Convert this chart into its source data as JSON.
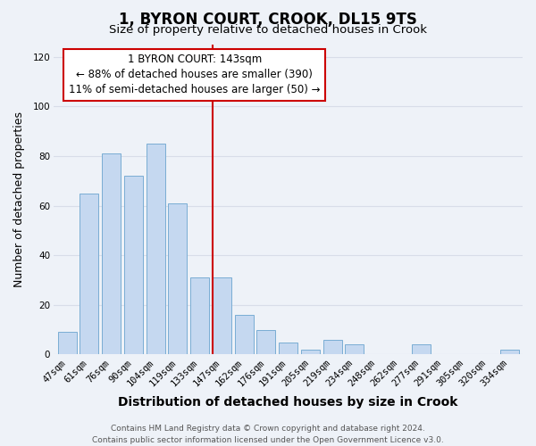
{
  "title": "1, BYRON COURT, CROOK, DL15 9TS",
  "subtitle": "Size of property relative to detached houses in Crook",
  "xlabel": "Distribution of detached houses by size in Crook",
  "ylabel": "Number of detached properties",
  "bar_labels": [
    "47sqm",
    "61sqm",
    "76sqm",
    "90sqm",
    "104sqm",
    "119sqm",
    "133sqm",
    "147sqm",
    "162sqm",
    "176sqm",
    "191sqm",
    "205sqm",
    "219sqm",
    "234sqm",
    "248sqm",
    "262sqm",
    "277sqm",
    "291sqm",
    "305sqm",
    "320sqm",
    "334sqm"
  ],
  "bar_values": [
    9,
    65,
    81,
    72,
    85,
    61,
    31,
    31,
    16,
    10,
    5,
    2,
    6,
    4,
    0,
    0,
    4,
    0,
    0,
    0,
    2
  ],
  "bar_color": "#c5d8f0",
  "bar_edge_color": "#7aadd4",
  "highlight_color": "#cc0000",
  "ylim": [
    0,
    125
  ],
  "yticks": [
    0,
    20,
    40,
    60,
    80,
    100,
    120
  ],
  "annotation_title": "1 BYRON COURT: 143sqm",
  "annotation_line1": "← 88% of detached houses are smaller (390)",
  "annotation_line2": "11% of semi-detached houses are larger (50) →",
  "annotation_box_color": "#ffffff",
  "annotation_box_edge": "#cc0000",
  "footer1": "Contains HM Land Registry data © Crown copyright and database right 2024.",
  "footer2": "Contains public sector information licensed under the Open Government Licence v3.0.",
  "background_color": "#eef2f8",
  "grid_color": "#d8dde8",
  "title_fontsize": 12,
  "subtitle_fontsize": 9.5,
  "xlabel_fontsize": 10,
  "ylabel_fontsize": 9,
  "tick_fontsize": 7.5,
  "annotation_fontsize": 8.5,
  "footer_fontsize": 6.5
}
